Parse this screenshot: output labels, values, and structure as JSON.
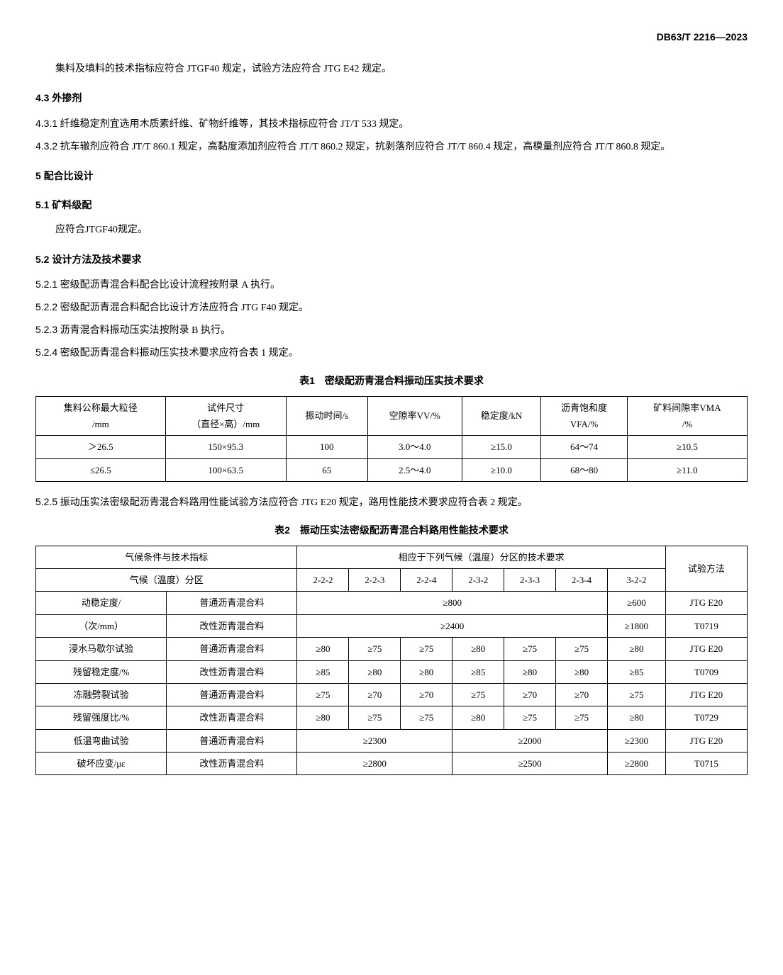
{
  "header": {
    "doc_code": "DB63/T 2216—2023"
  },
  "p1": "集料及填料的技术指标应符合 JTGF40 规定，试验方法应符合 JTG E42 规定。",
  "s43": {
    "title_num": "4.3",
    "title_text": "外掺剂",
    "c1_num": "4.3.1",
    "c1_text": "纤维稳定剂宜选用木质素纤维、矿物纤维等，其技术指标应符合 JT/T 533 规定。",
    "c2_num": "4.3.2",
    "c2_text": "抗车辙剂应符合 JT/T 860.1 规定，高黏度添加剂应符合 JT/T 860.2 规定，抗剥落剂应符合 JT/T 860.4 规定，高模量剂应符合 JT/T 860.8 规定。"
  },
  "s5": {
    "num": "5",
    "text": "配合比设计"
  },
  "s51": {
    "num": "5.1",
    "text": "矿料级配",
    "body": "应符合JTGF40规定。"
  },
  "s52": {
    "num": "5.2",
    "text": "设计方法及技术要求",
    "c1_num": "5.2.1",
    "c1_text": "密级配沥青混合料配合比设计流程按附录 A 执行。",
    "c2_num": "5.2.2",
    "c2_text": "密级配沥青混合料配合比设计方法应符合 JTG F40 规定。",
    "c3_num": "5.2.3",
    "c3_text": "沥青混合料振动压实法按附录 B 执行。",
    "c4_num": "5.2.4",
    "c4_text": "密级配沥青混合料振动压实技术要求应符合表 1 规定。",
    "c5_num": "5.2.5",
    "c5_text": "振动压实法密级配沥青混合料路用性能试验方法应符合 JTG E20 规定，路用性能技术要求应符合表 2 规定。"
  },
  "table1": {
    "title": "表1　密级配沥青混合料振动压实技术要求",
    "head": {
      "col1a": "集料公称最大粒径",
      "col1b": "/mm",
      "col2a": "试件尺寸",
      "col2b": "（直径×高）/mm",
      "col3": "振动时间/s",
      "col4": "空隙率VV/%",
      "col5": "稳定度/kN",
      "col6a": "沥青饱和度",
      "col6b": "VFA/%",
      "col7a": "矿料间隙率VMA",
      "col7b": "/%"
    },
    "rows": [
      {
        "c1": "＞26.5",
        "c2": "150×95.3",
        "c3": "100",
        "c4": "3.0～4.0",
        "c5": "≥15.0",
        "c6": "64～74",
        "c7": "≥10.5"
      },
      {
        "c1": "≤26.5",
        "c2": "100×63.5",
        "c3": "65",
        "c4": "2.5～4.0",
        "c5": "≥10.0",
        "c6": "68～80",
        "c7": "≥11.0"
      }
    ]
  },
  "table2": {
    "title": "表2　振动压实法密级配沥青混合料路用性能技术要求",
    "head": {
      "r1c1": "气候条件与技术指标",
      "r1c2": "相应于下列气候（温度）分区的技术要求",
      "r1c3": "试验方法",
      "r2c1": "气候（温度）分区",
      "zones": [
        "2-2-2",
        "2-2-3",
        "2-2-4",
        "2-3-2",
        "2-3-3",
        "2-3-4",
        "3-2-2"
      ]
    },
    "rows": [
      {
        "label": "动稳定度/",
        "type": "普通沥青混合料",
        "span": "≥800",
        "last": "≥600",
        "method": "JTG E20"
      },
      {
        "label": "（次/mm）",
        "type": "改性沥青混合料",
        "span": "≥2400",
        "last": "≥1800",
        "method": "T0719"
      },
      {
        "label": "浸水马歇尔试验",
        "type": "普通沥青混合料",
        "cells": [
          "≥80",
          "≥75",
          "≥75",
          "≥80",
          "≥75",
          "≥75",
          "≥80"
        ],
        "method": "JTG E20"
      },
      {
        "label": "残留稳定度/%",
        "type": "改性沥青混合料",
        "cells": [
          "≥85",
          "≥80",
          "≥80",
          "≥85",
          "≥80",
          "≥80",
          "≥85"
        ],
        "method": "T0709"
      },
      {
        "label": "冻融劈裂试验",
        "type": "普通沥青混合料",
        "cells": [
          "≥75",
          "≥70",
          "≥70",
          "≥75",
          "≥70",
          "≥70",
          "≥75"
        ],
        "method": "JTG E20"
      },
      {
        "label": "残留强度比/%",
        "type": "改性沥青混合料",
        "cells": [
          "≥80",
          "≥75",
          "≥75",
          "≥80",
          "≥75",
          "≥75",
          "≥80"
        ],
        "method": "T0729"
      },
      {
        "label": "低温弯曲试验",
        "type": "普通沥青混合料",
        "span3a": "≥2300",
        "span3b": "≥2000",
        "last": "≥2300",
        "method": "JTG E20"
      },
      {
        "label": "破坏应变/με",
        "type": "改性沥青混合料",
        "span3a": "≥2800",
        "span3b": "≥2500",
        "last": "≥2800",
        "method": "T0715"
      }
    ]
  }
}
